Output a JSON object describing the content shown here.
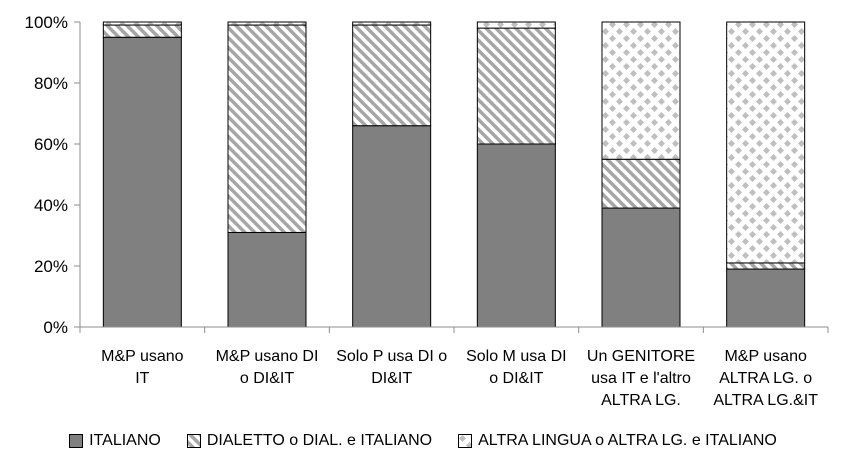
{
  "chart_data": {
    "type": "bar",
    "stacked": "percent",
    "categories": [
      [
        "M&P usano",
        "IT"
      ],
      [
        "M&P usano DI",
        "o DI&IT"
      ],
      [
        "Solo P usa DI o",
        "DI&IT"
      ],
      [
        "Solo M usa DI",
        "o DI&IT"
      ],
      [
        "Un GENITORE",
        "usa IT e l'altro",
        "ALTRA LG."
      ],
      [
        "M&P usano",
        "ALTRA LG. o",
        "ALTRA LG.&IT"
      ]
    ],
    "series": [
      {
        "name": "ITALIANO",
        "values": [
          95,
          31,
          66,
          60,
          39,
          19
        ],
        "color": "#808080",
        "pattern": "solid"
      },
      {
        "name": "DIALETTO o DIAL. e ITALIANO",
        "values": [
          4,
          68,
          33,
          38,
          16,
          2
        ],
        "color": "#a6a6a6",
        "pattern": "diagonal-stripes"
      },
      {
        "name": "ALTRA LINGUA o ALTRA LG. e ITALIANO",
        "values": [
          1,
          1,
          1,
          2,
          45,
          79
        ],
        "color": "#bfbfbf",
        "pattern": "diamond-dots"
      }
    ],
    "yticks": [
      "0%",
      "20%",
      "40%",
      "60%",
      "80%",
      "100%"
    ],
    "ylim": [
      0,
      100
    ],
    "grid": false,
    "legend": "bottom"
  }
}
